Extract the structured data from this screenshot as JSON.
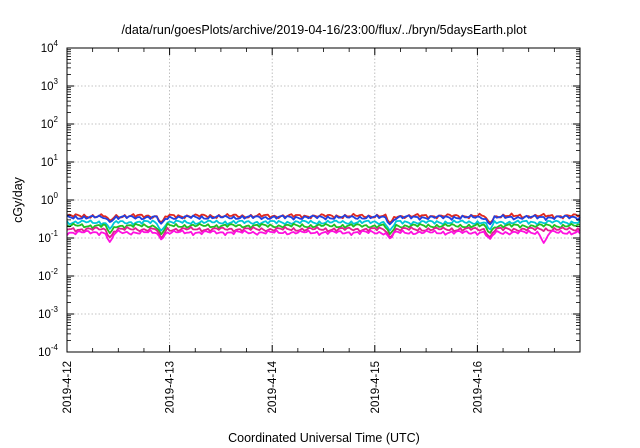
{
  "chart_data": {
    "type": "line",
    "title": "/data/run/goesPlots/archive/2019-04-16/23:00/flux/../bryn/5daysEarth.plot",
    "xlabel": "Coordinated Universal Time (UTC)",
    "ylabel": "cGy/day",
    "x_range": [
      "2019-04-12",
      "2019-04-17"
    ],
    "x_ticks": [
      "2019-4-12",
      "2019-4-13",
      "2019-4-14",
      "2019-4-15",
      "2019-4-16"
    ],
    "y_scale": "log",
    "y_range": [
      0.0001,
      10000
    ],
    "y_ticks": [
      {
        "base": "10",
        "exp": "-4"
      },
      {
        "base": "10",
        "exp": "-3"
      },
      {
        "base": "10",
        "exp": "-2"
      },
      {
        "base": "10",
        "exp": "-1"
      },
      {
        "base": "10",
        "exp": "0"
      },
      {
        "base": "10",
        "exp": "1"
      },
      {
        "base": "10",
        "exp": "2"
      },
      {
        "base": "10",
        "exp": "3"
      },
      {
        "base": "10",
        "exp": "4"
      }
    ],
    "grid": true,
    "legend": "none",
    "series": [
      {
        "color": "#e0281e",
        "level": 0.38,
        "dips": [
          {
            "x": 0.42,
            "min": 0.28
          },
          {
            "x": 0.92,
            "min": 0.25
          },
          {
            "x": 3.15,
            "min": 0.24
          },
          {
            "x": 4.12,
            "min": 0.24
          }
        ]
      },
      {
        "color": "#2040e0",
        "level": 0.35,
        "dips": [
          {
            "x": 0.42,
            "min": 0.26
          },
          {
            "x": 0.92,
            "min": 0.23
          },
          {
            "x": 3.15,
            "min": 0.22
          },
          {
            "x": 4.12,
            "min": 0.22
          }
        ]
      },
      {
        "color": "#00c8d8",
        "level": 0.26,
        "dips": [
          {
            "x": 0.42,
            "min": 0.17
          },
          {
            "x": 0.92,
            "min": 0.15
          },
          {
            "x": 3.15,
            "min": 0.15
          },
          {
            "x": 4.12,
            "min": 0.16
          }
        ]
      },
      {
        "color": "#20c020",
        "level": 0.21,
        "dips": [
          {
            "x": 0.42,
            "min": 0.13
          },
          {
            "x": 0.92,
            "min": 0.12
          },
          {
            "x": 3.15,
            "min": 0.12
          },
          {
            "x": 4.12,
            "min": 0.13
          }
        ]
      },
      {
        "color": "#e02090",
        "level": 0.17,
        "dips": [
          {
            "x": 0.42,
            "min": 0.1
          },
          {
            "x": 0.92,
            "min": 0.095
          },
          {
            "x": 3.15,
            "min": 0.1
          },
          {
            "x": 4.12,
            "min": 0.1
          }
        ]
      },
      {
        "color": "#ff10e0",
        "level": 0.14,
        "dips": [
          {
            "x": 0.42,
            "min": 0.075
          },
          {
            "x": 0.92,
            "min": 0.09
          },
          {
            "x": 3.15,
            "min": 0.095
          },
          {
            "x": 4.12,
            "min": 0.09
          },
          {
            "x": 4.65,
            "min": 0.07
          }
        ]
      }
    ]
  }
}
